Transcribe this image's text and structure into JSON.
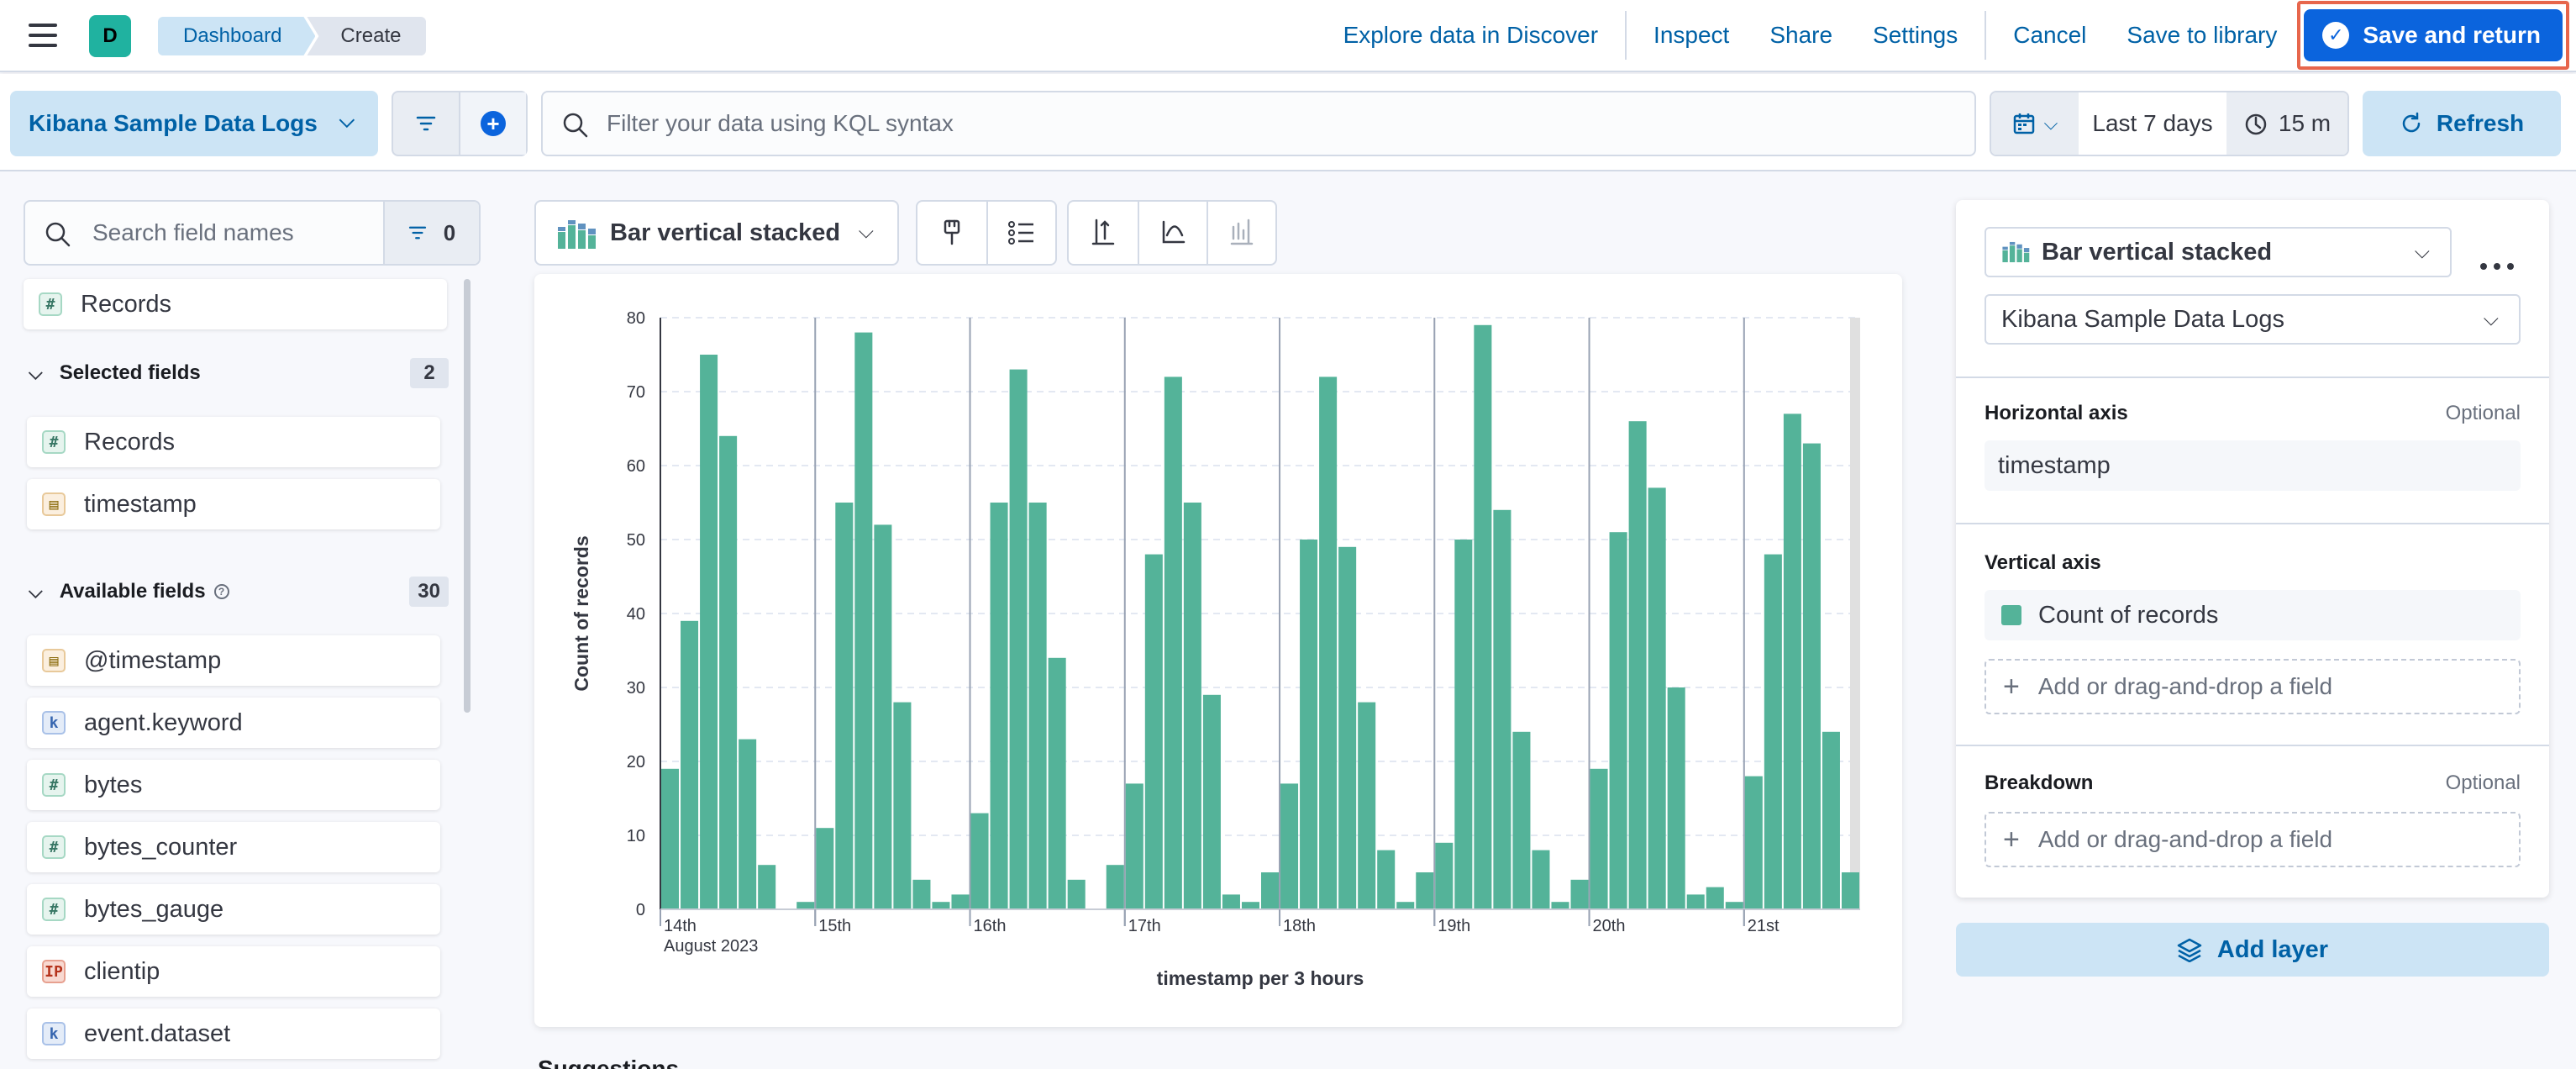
{
  "header": {
    "space_initial": "D",
    "breadcrumbs": [
      "Dashboard",
      "Create"
    ],
    "links": {
      "explore": "Explore data in Discover",
      "inspect": "Inspect",
      "share": "Share",
      "settings": "Settings",
      "cancel": "Cancel",
      "save_to_library": "Save to library",
      "save_and_return": "Save and return"
    }
  },
  "query_bar": {
    "data_view": "Kibana Sample Data Logs",
    "search_placeholder": "Filter your data using KQL syntax",
    "time_range": "Last 7 days",
    "refresh_interval": "15 m",
    "refresh_label": "Refresh"
  },
  "field_list": {
    "search_placeholder": "Search field names",
    "filter_count": "0",
    "records_label": "Records",
    "selected": {
      "title": "Selected fields",
      "count": "2",
      "fields": [
        {
          "name": "Records",
          "type": "number"
        },
        {
          "name": "timestamp",
          "type": "date"
        }
      ]
    },
    "available": {
      "title": "Available fields",
      "count": "30",
      "fields": [
        {
          "name": "@timestamp",
          "type": "date"
        },
        {
          "name": "agent.keyword",
          "type": "keyword"
        },
        {
          "name": "bytes",
          "type": "number"
        },
        {
          "name": "bytes_counter",
          "type": "number"
        },
        {
          "name": "bytes_gauge",
          "type": "number"
        },
        {
          "name": "clientip",
          "type": "ip"
        },
        {
          "name": "event.dataset",
          "type": "keyword"
        }
      ]
    }
  },
  "toolbar": {
    "chart_type": "Bar vertical stacked"
  },
  "chart_data": {
    "type": "bar",
    "title": "",
    "xlabel": "timestamp per 3 hours",
    "ylabel": "Count of records",
    "ylim": [
      0,
      80
    ],
    "yticks": [
      0,
      10,
      20,
      30,
      40,
      50,
      60,
      70,
      80
    ],
    "grid": true,
    "color": "#54b399",
    "x_range_hours": [
      0,
      186
    ],
    "day_labels": [
      "14th",
      "15th",
      "16th",
      "17th",
      "18th",
      "19th",
      "20th",
      "21st"
    ],
    "first_label_sub": "August 2023",
    "series": [
      {
        "values": [
          19,
          39,
          75,
          64,
          23,
          6,
          0,
          1,
          11,
          55,
          78,
          52,
          28,
          4,
          1,
          2,
          13,
          55,
          73,
          55,
          34,
          4,
          0,
          6,
          17,
          48,
          72,
          55,
          29,
          2,
          1,
          5,
          17,
          50,
          72,
          49,
          28,
          8,
          1,
          5,
          9,
          50,
          79,
          54,
          24,
          8,
          1,
          4,
          19,
          51,
          66,
          57,
          30,
          2,
          3,
          1,
          18,
          48,
          67,
          63,
          24,
          5
        ]
      }
    ]
  },
  "config_panel": {
    "chart_type": "Bar vertical stacked",
    "data_view": "Kibana Sample Data Logs",
    "horizontal_axis": {
      "label": "Horizontal axis",
      "optional": "Optional",
      "field": "timestamp"
    },
    "vertical_axis": {
      "label": "Vertical axis",
      "field": "Count of records",
      "add": "Add or drag-and-drop a field"
    },
    "breakdown": {
      "label": "Breakdown",
      "optional": "Optional",
      "add": "Add or drag-and-drop a field"
    },
    "add_layer": "Add layer"
  },
  "below_chart": "Suggestions",
  "icons": {
    "menu": "hamburger-icon",
    "search": "search-icon",
    "filter": "filter-icon",
    "calendar": "calendar-icon",
    "refresh": "refresh-icon",
    "layers": "layers-icon"
  }
}
